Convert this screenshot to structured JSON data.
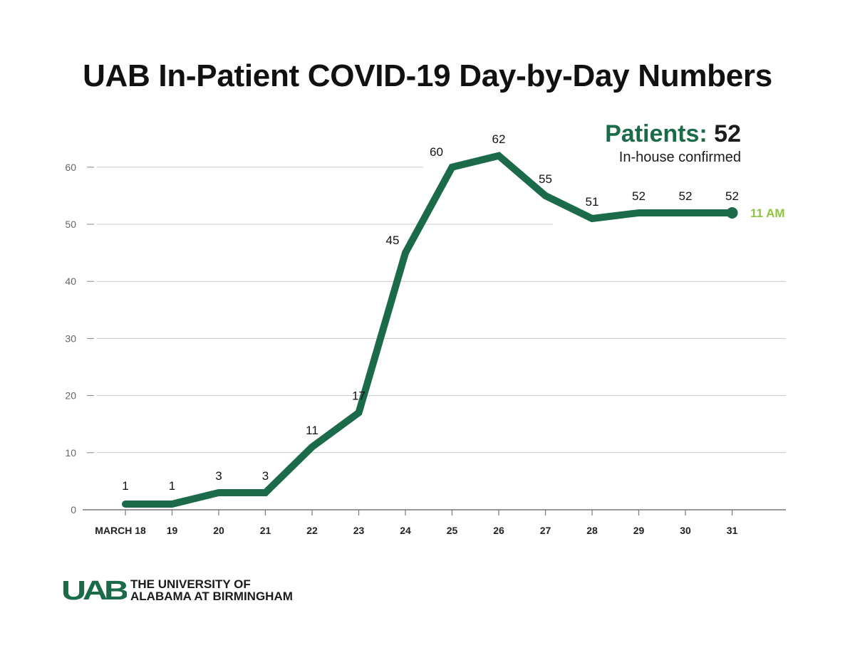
{
  "header": {
    "title": "UAB In-Patient COVID-19 Day-by-Day Numbers"
  },
  "callout": {
    "label": "Patients:",
    "value": "52",
    "subtitle": "In-house confirmed"
  },
  "chart_data": {
    "type": "line",
    "title": "UAB In-Patient COVID-19 Day-by-Day Numbers",
    "xlabel": "",
    "ylabel": "",
    "categories": [
      "MARCH 18",
      "19",
      "20",
      "21",
      "22",
      "23",
      "24",
      "25",
      "26",
      "27",
      "28",
      "29",
      "30",
      "31"
    ],
    "series": [
      {
        "name": "In-house confirmed patients",
        "values": [
          1,
          1,
          3,
          3,
          11,
          17,
          45,
          60,
          62,
          55,
          51,
          52,
          52,
          52
        ]
      }
    ],
    "y_ticks": [
      0,
      10,
      20,
      30,
      40,
      50,
      60
    ],
    "ylim": [
      0,
      60
    ],
    "grid": true,
    "end_marker_label": "11 AM",
    "colors": {
      "line": "#1b6b4b",
      "end_label": "#8cc63f",
      "grid": "#c8c8c8",
      "axis": "#888888"
    }
  },
  "footer": {
    "logo_mark": "UAB",
    "org_line1": "THE UNIVERSITY OF",
    "org_line2": "ALABAMA AT BIRMINGHAM"
  }
}
